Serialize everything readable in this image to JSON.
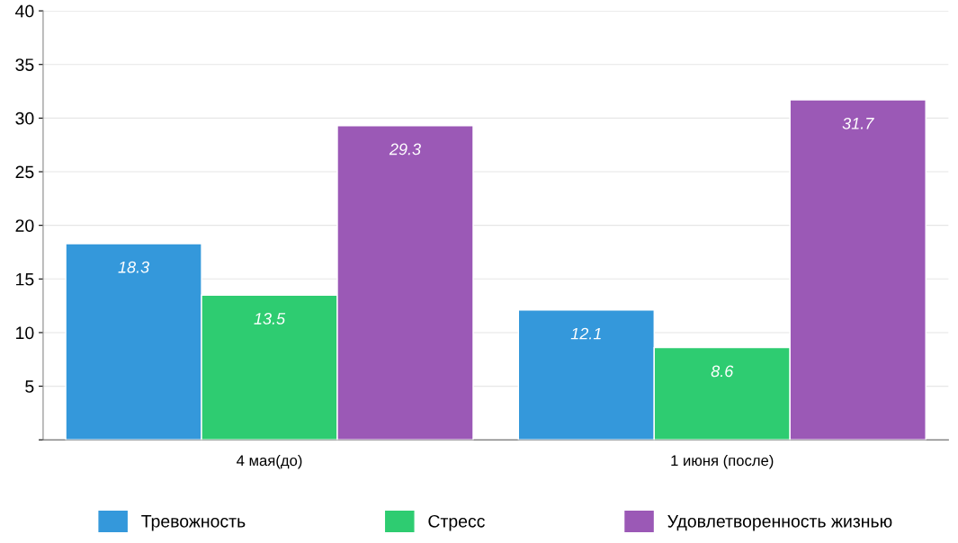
{
  "chart_data": {
    "type": "bar",
    "categories": [
      "4 мая(до)",
      "1 июня (после)"
    ],
    "series": [
      {
        "name": "Тревожность",
        "color": "#3498db",
        "values": [
          18.3,
          12.1
        ]
      },
      {
        "name": "Стресс",
        "color": "#2ecc71",
        "values": [
          13.5,
          8.6
        ]
      },
      {
        "name": "Удовлетворенность жизнью",
        "color": "#9b59b6",
        "values": [
          29.3,
          31.7
        ]
      }
    ],
    "ylim": [
      0,
      40
    ],
    "yticks": [
      {
        "value": 0,
        "label": null
      },
      5,
      10,
      15,
      20,
      25,
      30,
      35,
      40
    ],
    "grid": "y",
    "legend": "bottom",
    "data_labels": true
  }
}
